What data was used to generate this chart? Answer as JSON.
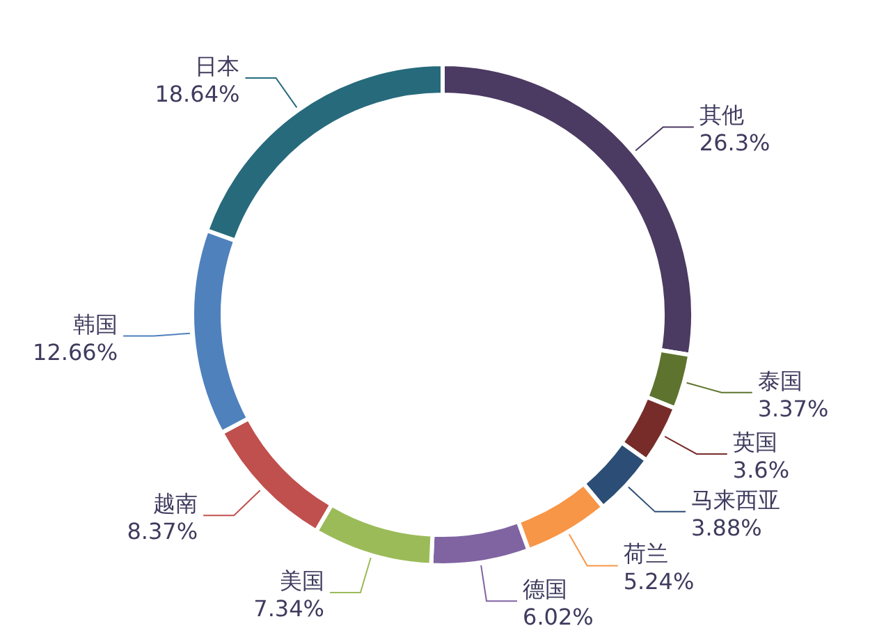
{
  "chart_data": {
    "type": "donut",
    "categories": [
      "其他",
      "泰国",
      "英国",
      "马来西亚",
      "荷兰",
      "德国",
      "美国",
      "越南",
      "韩国",
      "日本"
    ],
    "values": [
      26.3,
      3.37,
      3.6,
      3.88,
      5.24,
      6.02,
      7.34,
      8.37,
      12.66,
      18.64
    ],
    "value_labels": [
      "26.3%",
      "3.37%",
      "3.6%",
      "3.88%",
      "5.24%",
      "6.02%",
      "7.34%",
      "8.37%",
      "12.66%",
      "18.64%"
    ],
    "colors": [
      "#4b3a62",
      "#5e742e",
      "#772c2a",
      "#2c4d75",
      "#f79646",
      "#8064a2",
      "#9bbb59",
      "#c0504d",
      "#4f81bd",
      "#276a7c"
    ]
  }
}
